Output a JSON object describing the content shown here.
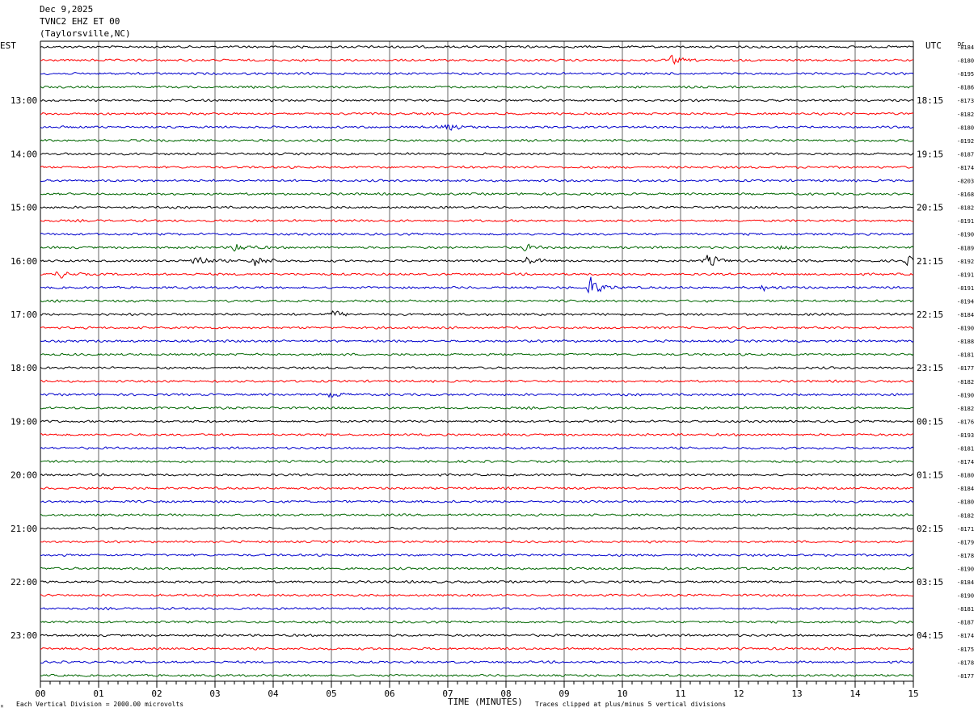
{
  "header": {
    "date": "Dec 9,2025",
    "station": "TVNC2 EHZ ET 00",
    "location": "(Taylorsville,NC)"
  },
  "chart_data": {
    "type": "line",
    "title": "",
    "left_timezone": "EST",
    "right_timezone": "UTC",
    "dc_label": "DC",
    "xlabel": "TIME (MINUTES)",
    "xlim": [
      0,
      15
    ],
    "x_ticks": [
      "00",
      "01",
      "02",
      "03",
      "04",
      "05",
      "06",
      "07",
      "08",
      "09",
      "10",
      "11",
      "12",
      "13",
      "14",
      "15"
    ],
    "traces_per_hour": 4,
    "trace_colors": [
      "#000000",
      "#ff0000",
      "#0000cc",
      "#006600"
    ],
    "left_hour_labels": [
      {
        "trace_index": 4,
        "label": "13:00"
      },
      {
        "trace_index": 8,
        "label": "14:00"
      },
      {
        "trace_index": 12,
        "label": "15:00"
      },
      {
        "trace_index": 16,
        "label": "16:00"
      },
      {
        "trace_index": 20,
        "label": "17:00"
      },
      {
        "trace_index": 24,
        "label": "18:00"
      },
      {
        "trace_index": 28,
        "label": "19:00"
      },
      {
        "trace_index": 32,
        "label": "20:00"
      },
      {
        "trace_index": 36,
        "label": "21:00"
      },
      {
        "trace_index": 40,
        "label": "22:00"
      },
      {
        "trace_index": 44,
        "label": "23:00"
      }
    ],
    "right_hour_labels": [
      {
        "trace_index": 4,
        "label": "18:15"
      },
      {
        "trace_index": 8,
        "label": "19:15"
      },
      {
        "trace_index": 12,
        "label": "20:15"
      },
      {
        "trace_index": 16,
        "label": "21:15"
      },
      {
        "trace_index": 20,
        "label": "22:15"
      },
      {
        "trace_index": 24,
        "label": "23:15"
      },
      {
        "trace_index": 28,
        "label": "00:15"
      },
      {
        "trace_index": 32,
        "label": "01:15"
      },
      {
        "trace_index": 36,
        "label": "02:15"
      },
      {
        "trace_index": 40,
        "label": "03:15"
      },
      {
        "trace_index": 44,
        "label": "04:15"
      }
    ],
    "dc_offsets": [
      "-8184",
      "-8180",
      "-8195",
      "-8186",
      "-8173",
      "-8182",
      "-8180",
      "-8192",
      "-8187",
      "-8174",
      "-8203",
      "-8168",
      "-8182",
      "-8191",
      "-8190",
      "-8189",
      "-8192",
      "-8191",
      "-8191",
      "-8194",
      "-8184",
      "-8190",
      "-8188",
      "-8181",
      "-8177",
      "-8182",
      "-8190",
      "-8182",
      "-8176",
      "-8193",
      "-8181",
      "-8174",
      "-8180",
      "-8184",
      "-8180",
      "-8182",
      "-8171",
      "-8179",
      "-8178",
      "-8190",
      "-8184",
      "-8190",
      "-8181",
      "-8187",
      "-8174",
      "-8175",
      "-8178",
      "-8177"
    ],
    "events": [
      {
        "trace_index": 1,
        "minute": 10.85,
        "amplitude": 1.6
      },
      {
        "trace_index": 6,
        "minute": 6.95,
        "amplitude": 1.5
      },
      {
        "trace_index": 15,
        "minute": 3.35,
        "amplitude": 2.2
      },
      {
        "trace_index": 15,
        "minute": 8.3,
        "amplitude": 1.2
      },
      {
        "trace_index": 15,
        "minute": 12.7,
        "amplitude": 1.1
      },
      {
        "trace_index": 16,
        "minute": 2.65,
        "amplitude": 2.6
      },
      {
        "trace_index": 16,
        "minute": 3.65,
        "amplitude": 2.6
      },
      {
        "trace_index": 16,
        "minute": 8.35,
        "amplitude": 1.6
      },
      {
        "trace_index": 16,
        "minute": 11.45,
        "amplitude": 2.6
      },
      {
        "trace_index": 16,
        "minute": 14.9,
        "amplitude": 1.6
      },
      {
        "trace_index": 17,
        "minute": 0.3,
        "amplitude": 1.6
      },
      {
        "trace_index": 18,
        "minute": 9.45,
        "amplitude": 4.0
      },
      {
        "trace_index": 18,
        "minute": 12.4,
        "amplitude": 1.1
      },
      {
        "trace_index": 20,
        "minute": 5.0,
        "amplitude": 1.6
      },
      {
        "trace_index": 26,
        "minute": 5.0,
        "amplitude": 1.2
      }
    ]
  },
  "footer": {
    "scale_note": "Each Vertical Division = 2000.00 microvolts",
    "clip_note": "Traces clipped at plus/minus 5 vertical divisions"
  }
}
